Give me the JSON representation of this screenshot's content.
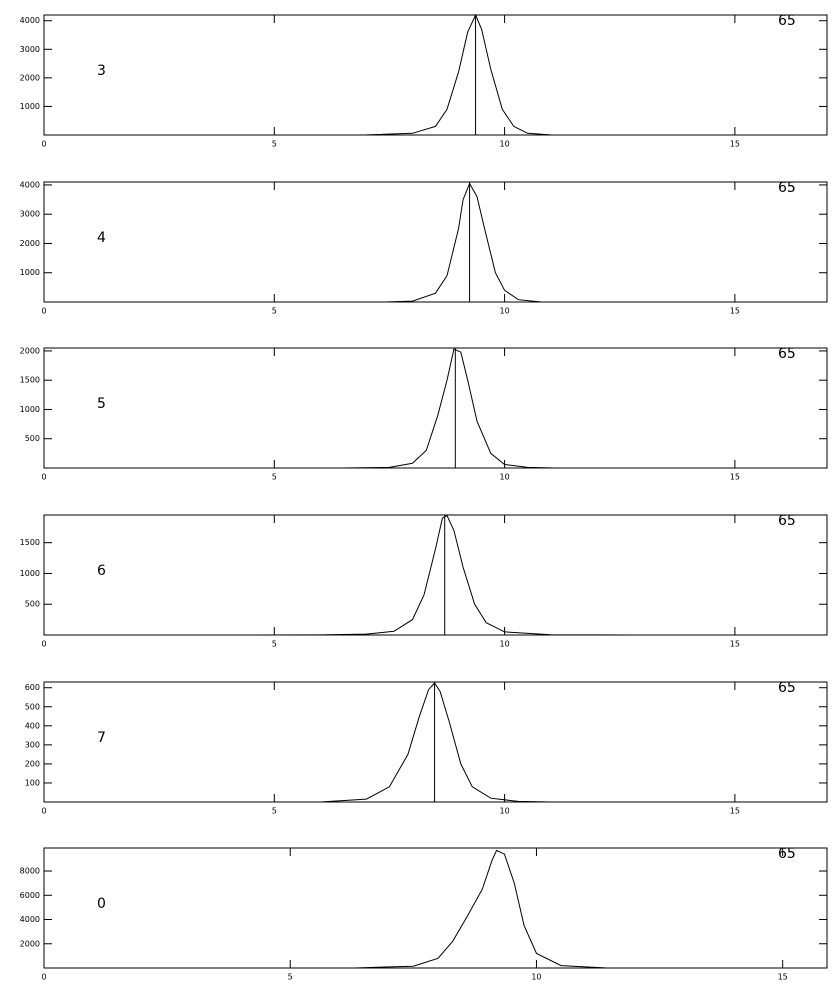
{
  "chart_data": [
    {
      "type": "line",
      "x": [
        5.8,
        7,
        8,
        8.5,
        8.75,
        9.0,
        9.2,
        9.37,
        9.5,
        9.7,
        9.95,
        10.2,
        10.5,
        11,
        12.4
      ],
      "values": [
        0,
        5,
        60,
        300,
        900,
        2200,
        3600,
        4200,
        3700,
        2300,
        900,
        300,
        60,
        5,
        0
      ],
      "xlim": [
        0,
        17
      ],
      "ylim": [
        0,
        4200
      ],
      "xticks": [
        0,
        5,
        10,
        15
      ],
      "yticks": [
        1000,
        2000,
        3000,
        4000
      ],
      "peak_x": 9.37,
      "annotations": [
        "3",
        "65"
      ]
    },
    {
      "type": "line",
      "x": [
        7.4,
        8,
        8.5,
        8.75,
        9.0,
        9.1,
        9.24,
        9.4,
        9.55,
        9.8,
        10.0,
        10.3,
        10.8
      ],
      "values": [
        0,
        30,
        300,
        900,
        2500,
        3500,
        4050,
        3600,
        2600,
        1000,
        400,
        80,
        0
      ],
      "xlim": [
        0,
        17
      ],
      "ylim": [
        0,
        4100
      ],
      "xticks": [
        0,
        5,
        10,
        15
      ],
      "yticks": [
        1000,
        2000,
        3000,
        4000
      ],
      "peak_x": 9.24,
      "annotations": [
        "4",
        "65"
      ]
    },
    {
      "type": "line",
      "x": [
        6.5,
        7.5,
        8,
        8.3,
        8.55,
        8.75,
        8.9,
        9.05,
        9.2,
        9.4,
        9.7,
        10,
        10.5,
        11.1
      ],
      "values": [
        0,
        10,
        80,
        300,
        900,
        1500,
        2030,
        1980,
        1500,
        800,
        250,
        60,
        10,
        0
      ],
      "xlim": [
        0,
        17
      ],
      "ylim": [
        0,
        2050
      ],
      "xticks": [
        0,
        5,
        10,
        15
      ],
      "yticks": [
        500,
        1000,
        1500,
        2000
      ],
      "peak_x": 8.93,
      "annotations": [
        "5",
        "65"
      ]
    },
    {
      "type": "line",
      "x": [
        3.9,
        6,
        7,
        7.6,
        8,
        8.25,
        8.5,
        8.65,
        8.75,
        8.9,
        9.1,
        9.35,
        9.6,
        10,
        11,
        12.8
      ],
      "values": [
        0,
        2,
        15,
        60,
        250,
        650,
        1400,
        1900,
        1940,
        1700,
        1100,
        500,
        200,
        50,
        5,
        0
      ],
      "xlim": [
        0,
        17
      ],
      "ylim": [
        0,
        1950
      ],
      "xticks": [
        0,
        5,
        10,
        15
      ],
      "yticks": [
        500,
        1000,
        1500
      ],
      "peak_x": 8.7,
      "annotations": [
        "6",
        "65"
      ]
    },
    {
      "type": "line",
      "x": [
        6,
        7,
        7.5,
        7.9,
        8.15,
        8.35,
        8.48,
        8.6,
        8.8,
        9.05,
        9.3,
        9.7,
        10.3,
        11
      ],
      "values": [
        0,
        15,
        80,
        250,
        450,
        590,
        625,
        580,
        420,
        200,
        80,
        20,
        3,
        0
      ],
      "xlim": [
        0,
        17
      ],
      "ylim": [
        0,
        630
      ],
      "xticks": [
        0,
        5,
        10,
        15
      ],
      "yticks": [
        100,
        200,
        300,
        400,
        500,
        600
      ],
      "peak_x": 8.48,
      "annotations": [
        "7",
        "65"
      ]
    },
    {
      "type": "line",
      "x": [
        6.3,
        7.5,
        8,
        8.3,
        8.6,
        8.9,
        9.1,
        9.19,
        9.35,
        9.55,
        9.75,
        10,
        10.5,
        11.44
      ],
      "values": [
        0,
        150,
        800,
        2200,
        4300,
        6500,
        8900,
        9700,
        9400,
        7000,
        3500,
        1200,
        200,
        0
      ],
      "xlim": [
        0,
        15.9
      ],
      "ylim": [
        0,
        9900
      ],
      "xticks": [
        0,
        5,
        10,
        15
      ],
      "yticks": [
        2000,
        4000,
        6000,
        8000
      ],
      "annotations": [
        "0",
        "65"
      ]
    }
  ]
}
